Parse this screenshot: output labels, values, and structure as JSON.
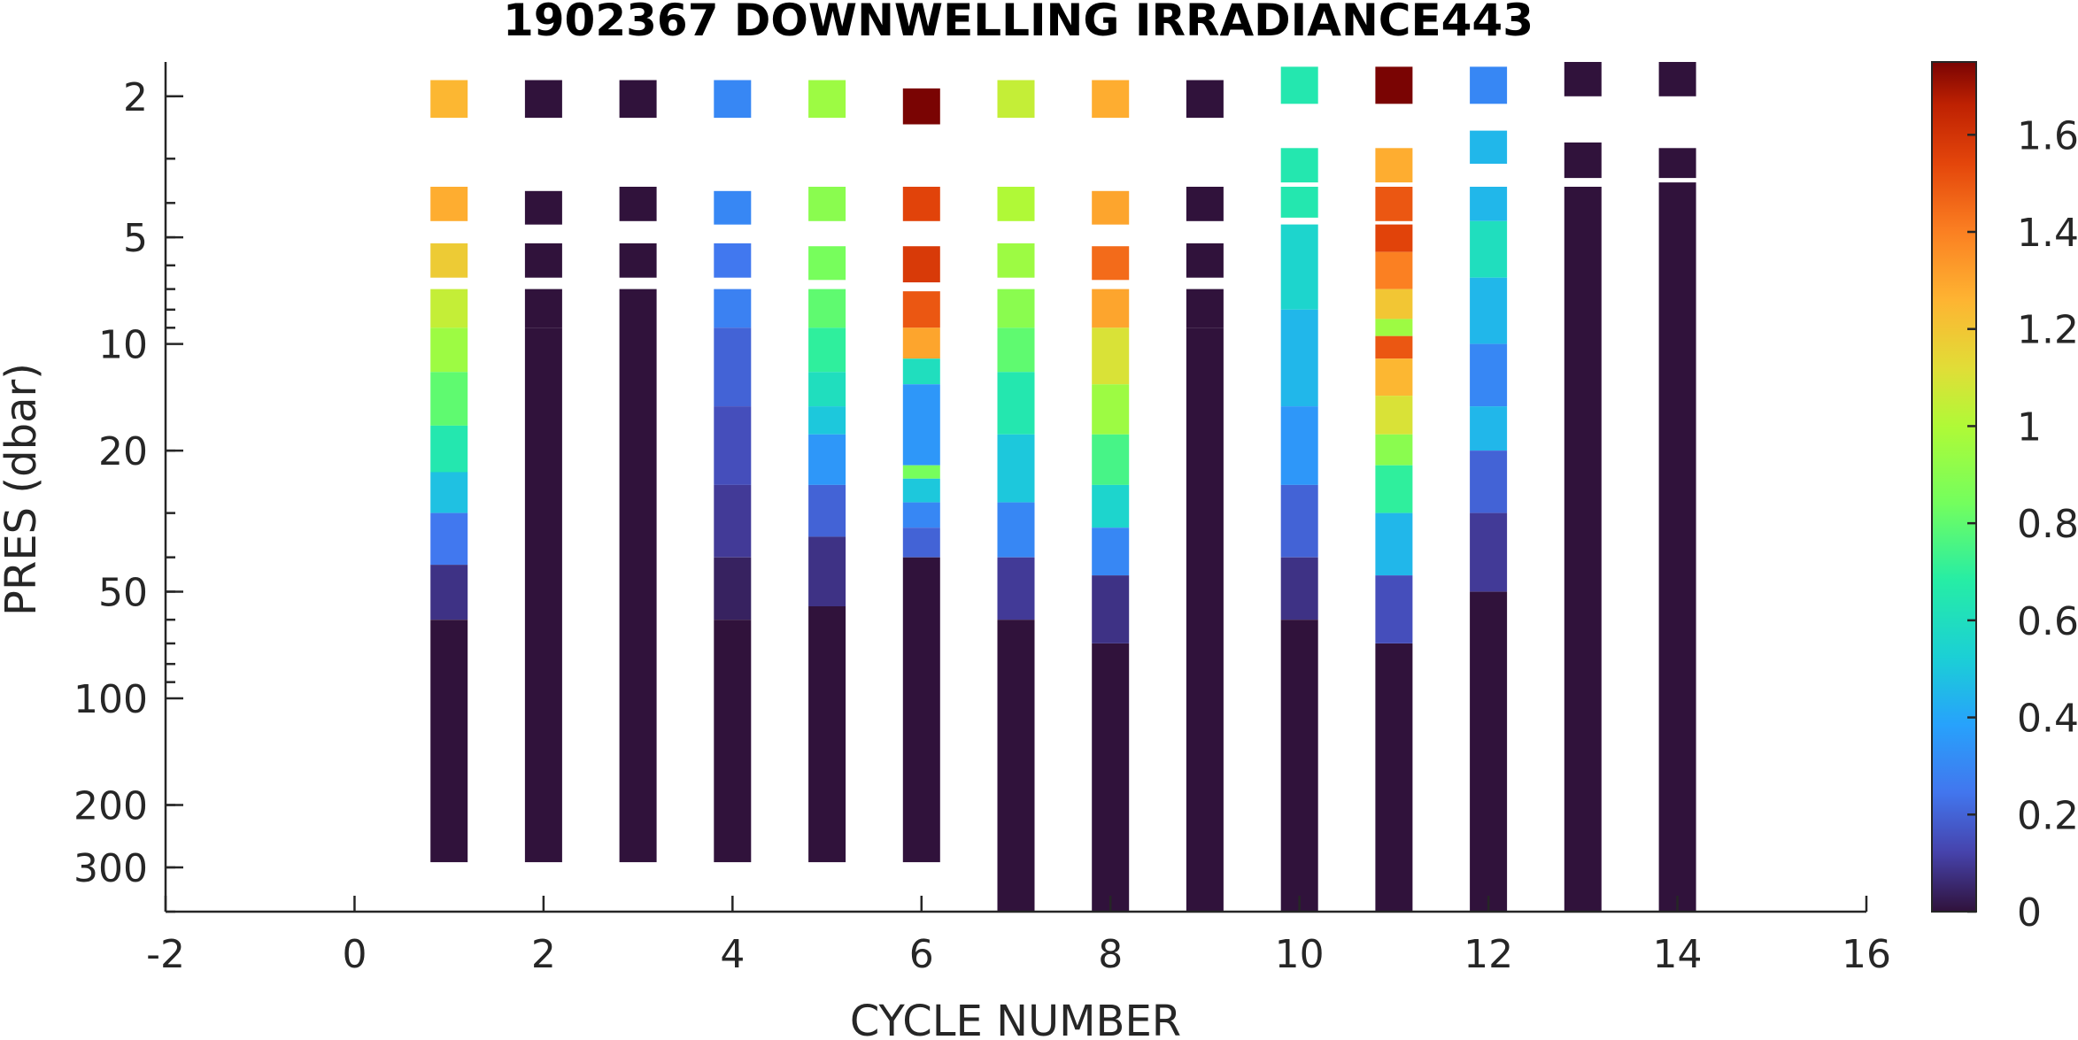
{
  "chart_data": {
    "type": "heatmap",
    "title": "1902367  DOWNWELLING IRRADIANCE443",
    "xlabel": "CYCLE NUMBER",
    "ylabel": "PRES (dbar)",
    "xlim": [
      -2,
      16
    ],
    "x_ticks": [
      -2,
      0,
      2,
      4,
      6,
      8,
      10,
      12,
      14,
      16
    ],
    "y_scale": "log",
    "y_reversed": true,
    "ylim": [
      1.6,
      400
    ],
    "y_ticks": [
      2,
      5,
      10,
      20,
      50,
      100,
      200,
      300
    ],
    "colorbar": {
      "colormap": "turbo",
      "range": [
        0,
        1.75
      ],
      "ticks": [
        0,
        0.2,
        0.4,
        0.6,
        0.8,
        1,
        1.2,
        1.4,
        1.6
      ]
    },
    "grid": false,
    "profiles": [
      {
        "cycle": 1,
        "segments": [
          {
            "p": [
              1.8,
              2.3
            ],
            "v": 1.25
          },
          {
            "p": [
              3.6,
              4.5
            ],
            "v": 1.28
          },
          {
            "p": [
              5.2,
              6.5
            ],
            "v": 1.18
          },
          {
            "p": [
              7.0,
              9.0
            ],
            "v": 1.05
          },
          {
            "p": [
              9.0,
              12.0
            ],
            "v": 0.95
          },
          {
            "p": [
              12.0,
              17.0
            ],
            "v": 0.8
          },
          {
            "p": [
              17.0,
              23.0
            ],
            "v": 0.65
          },
          {
            "p": [
              23.0,
              30.0
            ],
            "v": 0.48
          },
          {
            "p": [
              30.0,
              42.0
            ],
            "v": 0.25
          },
          {
            "p": [
              42.0,
              60.0
            ],
            "v": 0.08
          },
          {
            "p": [
              60.0,
              290.0
            ],
            "v": 0.0
          }
        ]
      },
      {
        "cycle": 2,
        "segments": [
          {
            "p": [
              1.8,
              2.3
            ],
            "v": 0.0
          },
          {
            "p": [
              3.7,
              4.6
            ],
            "v": 0.0
          },
          {
            "p": [
              5.2,
              6.5
            ],
            "v": 0.0
          },
          {
            "p": [
              7.0,
              9.0
            ],
            "v": 0.0
          },
          {
            "p": [
              9.0,
              290.0
            ],
            "v": 0.0
          }
        ]
      },
      {
        "cycle": 3,
        "segments": [
          {
            "p": [
              1.8,
              2.3
            ],
            "v": 0.0
          },
          {
            "p": [
              3.6,
              4.5
            ],
            "v": 0.0
          },
          {
            "p": [
              5.2,
              6.5
            ],
            "v": 0.0
          },
          {
            "p": [
              7.0,
              290.0
            ],
            "v": 0.0
          }
        ]
      },
      {
        "cycle": 4,
        "segments": [
          {
            "p": [
              1.8,
              2.3
            ],
            "v": 0.3
          },
          {
            "p": [
              3.7,
              4.6
            ],
            "v": 0.3
          },
          {
            "p": [
              5.2,
              6.5
            ],
            "v": 0.25
          },
          {
            "p": [
              7.0,
              9.0
            ],
            "v": 0.28
          },
          {
            "p": [
              9.0,
              15.0
            ],
            "v": 0.2
          },
          {
            "p": [
              15.0,
              25.0
            ],
            "v": 0.15
          },
          {
            "p": [
              25.0,
              40.0
            ],
            "v": 0.1
          },
          {
            "p": [
              40.0,
              60.0
            ],
            "v": 0.04
          },
          {
            "p": [
              60.0,
              290.0
            ],
            "v": 0.0
          }
        ]
      },
      {
        "cycle": 5,
        "segments": [
          {
            "p": [
              1.8,
              2.3
            ],
            "v": 0.95
          },
          {
            "p": [
              3.6,
              4.5
            ],
            "v": 0.9
          },
          {
            "p": [
              5.3,
              6.6
            ],
            "v": 0.85
          },
          {
            "p": [
              7.0,
              9.0
            ],
            "v": 0.8
          },
          {
            "p": [
              9.0,
              12.0
            ],
            "v": 0.7
          },
          {
            "p": [
              12.0,
              15.0
            ],
            "v": 0.6
          },
          {
            "p": [
              15.0,
              18.0
            ],
            "v": 0.5
          },
          {
            "p": [
              18.0,
              25.0
            ],
            "v": 0.35
          },
          {
            "p": [
              25.0,
              35.0
            ],
            "v": 0.2
          },
          {
            "p": [
              35.0,
              55.0
            ],
            "v": 0.08
          },
          {
            "p": [
              55.0,
              290.0
            ],
            "v": 0.0
          }
        ]
      },
      {
        "cycle": 6,
        "segments": [
          {
            "p": [
              1.9,
              2.4
            ],
            "v": 1.75
          },
          {
            "p": [
              3.6,
              4.5
            ],
            "v": 1.55
          },
          {
            "p": [
              5.3,
              6.7
            ],
            "v": 1.58
          },
          {
            "p": [
              7.1,
              9.0
            ],
            "v": 1.5
          },
          {
            "p": [
              9.0,
              11.0
            ],
            "v": 1.3
          },
          {
            "p": [
              11.0,
              13.0
            ],
            "v": 0.6
          },
          {
            "p": [
              13.0,
              22.0
            ],
            "v": 0.35
          },
          {
            "p": [
              22.0,
              24.0
            ],
            "v": 0.85
          },
          {
            "p": [
              24.0,
              28.0
            ],
            "v": 0.5
          },
          {
            "p": [
              28.0,
              33.0
            ],
            "v": 0.3
          },
          {
            "p": [
              33.0,
              40.0
            ],
            "v": 0.2
          },
          {
            "p": [
              40.0,
              290.0
            ],
            "v": 0.0
          }
        ]
      },
      {
        "cycle": 7,
        "segments": [
          {
            "p": [
              1.8,
              2.3
            ],
            "v": 1.05
          },
          {
            "p": [
              3.6,
              4.5
            ],
            "v": 1.0
          },
          {
            "p": [
              5.2,
              6.5
            ],
            "v": 0.95
          },
          {
            "p": [
              7.0,
              9.0
            ],
            "v": 0.9
          },
          {
            "p": [
              9.0,
              12.0
            ],
            "v": 0.8
          },
          {
            "p": [
              12.0,
              18.0
            ],
            "v": 0.65
          },
          {
            "p": [
              18.0,
              28.0
            ],
            "v": 0.5
          },
          {
            "p": [
              28.0,
              40.0
            ],
            "v": 0.3
          },
          {
            "p": [
              40.0,
              60.0
            ],
            "v": 0.1
          },
          {
            "p": [
              60.0,
              400.0
            ],
            "v": 0.0
          }
        ]
      },
      {
        "cycle": 8,
        "segments": [
          {
            "p": [
              1.8,
              2.3
            ],
            "v": 1.28
          },
          {
            "p": [
              3.7,
              4.6
            ],
            "v": 1.3
          },
          {
            "p": [
              5.3,
              6.6
            ],
            "v": 1.45
          },
          {
            "p": [
              7.0,
              9.0
            ],
            "v": 1.3
          },
          {
            "p": [
              9.0,
              13.0
            ],
            "v": 1.1
          },
          {
            "p": [
              13.0,
              18.0
            ],
            "v": 0.95
          },
          {
            "p": [
              18.0,
              25.0
            ],
            "v": 0.75
          },
          {
            "p": [
              25.0,
              33.0
            ],
            "v": 0.55
          },
          {
            "p": [
              33.0,
              45.0
            ],
            "v": 0.3
          },
          {
            "p": [
              45.0,
              70.0
            ],
            "v": 0.08
          },
          {
            "p": [
              70.0,
              400.0
            ],
            "v": 0.0
          }
        ]
      },
      {
        "cycle": 9,
        "segments": [
          {
            "p": [
              1.8,
              2.3
            ],
            "v": 0.0
          },
          {
            "p": [
              3.6,
              4.5
            ],
            "v": 0.0
          },
          {
            "p": [
              5.2,
              6.5
            ],
            "v": 0.0
          },
          {
            "p": [
              7.0,
              9.0
            ],
            "v": 0.0
          },
          {
            "p": [
              9.0,
              400.0
            ],
            "v": 0.0
          }
        ]
      },
      {
        "cycle": 10,
        "segments": [
          {
            "p": [
              1.65,
              2.1
            ],
            "v": 0.65
          },
          {
            "p": [
              2.8,
              3.5
            ],
            "v": 0.65
          },
          {
            "p": [
              3.6,
              4.4
            ],
            "v": 0.65
          },
          {
            "p": [
              4.6,
              8.0
            ],
            "v": 0.55
          },
          {
            "p": [
              8.0,
              15.0
            ],
            "v": 0.45
          },
          {
            "p": [
              15.0,
              25.0
            ],
            "v": 0.35
          },
          {
            "p": [
              25.0,
              40.0
            ],
            "v": 0.2
          },
          {
            "p": [
              40.0,
              60.0
            ],
            "v": 0.08
          },
          {
            "p": [
              60.0,
              400.0
            ],
            "v": 0.0
          }
        ]
      },
      {
        "cycle": 11,
        "segments": [
          {
            "p": [
              1.65,
              2.1
            ],
            "v": 1.75
          },
          {
            "p": [
              2.8,
              3.5
            ],
            "v": 1.28
          },
          {
            "p": [
              3.6,
              4.5
            ],
            "v": 1.5
          },
          {
            "p": [
              4.6,
              5.5
            ],
            "v": 1.55
          },
          {
            "p": [
              5.5,
              7.0
            ],
            "v": 1.4
          },
          {
            "p": [
              7.0,
              8.5
            ],
            "v": 1.2
          },
          {
            "p": [
              8.5,
              9.5
            ],
            "v": 0.95
          },
          {
            "p": [
              9.5,
              11.0
            ],
            "v": 1.5
          },
          {
            "p": [
              11.0,
              14.0
            ],
            "v": 1.25
          },
          {
            "p": [
              14.0,
              18.0
            ],
            "v": 1.1
          },
          {
            "p": [
              18.0,
              22.0
            ],
            "v": 0.9
          },
          {
            "p": [
              22.0,
              30.0
            ],
            "v": 0.7
          },
          {
            "p": [
              30.0,
              45.0
            ],
            "v": 0.45
          },
          {
            "p": [
              45.0,
              70.0
            ],
            "v": 0.15
          },
          {
            "p": [
              70.0,
              400.0
            ],
            "v": 0.0
          }
        ]
      },
      {
        "cycle": 12,
        "segments": [
          {
            "p": [
              1.65,
              2.1
            ],
            "v": 0.3
          },
          {
            "p": [
              2.5,
              3.1
            ],
            "v": 0.45
          },
          {
            "p": [
              3.6,
              4.5
            ],
            "v": 0.45
          },
          {
            "p": [
              4.5,
              6.5
            ],
            "v": 0.6
          },
          {
            "p": [
              6.5,
              10.0
            ],
            "v": 0.45
          },
          {
            "p": [
              10.0,
              15.0
            ],
            "v": 0.3
          },
          {
            "p": [
              15.0,
              20.0
            ],
            "v": 0.45
          },
          {
            "p": [
              20.0,
              30.0
            ],
            "v": 0.2
          },
          {
            "p": [
              30.0,
              50.0
            ],
            "v": 0.1
          },
          {
            "p": [
              50.0,
              400.0
            ],
            "v": 0.0
          }
        ]
      },
      {
        "cycle": 13,
        "segments": [
          {
            "p": [
              1.6,
              2.0
            ],
            "v": 0.0
          },
          {
            "p": [
              2.7,
              3.4
            ],
            "v": 0.0
          },
          {
            "p": [
              3.6,
              400.0
            ],
            "v": 0.0
          }
        ]
      },
      {
        "cycle": 14,
        "segments": [
          {
            "p": [
              1.6,
              2.0
            ],
            "v": 0.0
          },
          {
            "p": [
              2.8,
              3.4
            ],
            "v": 0.0
          },
          {
            "p": [
              3.5,
              400.0
            ],
            "v": 0.0
          }
        ]
      }
    ]
  }
}
